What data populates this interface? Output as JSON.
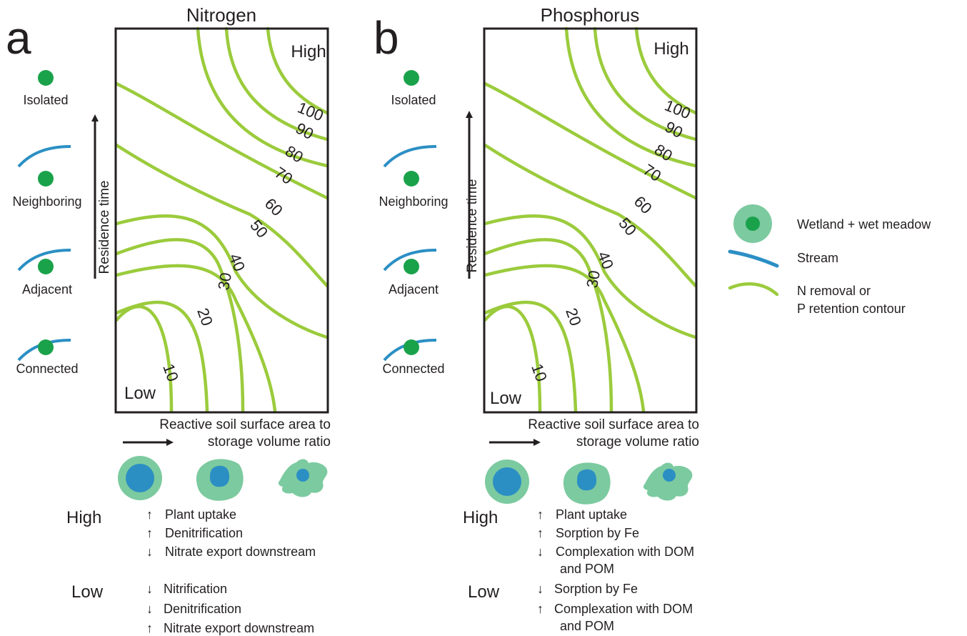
{
  "panels": [
    {
      "letter": "a",
      "title": "Nitrogen",
      "corner_high": "High",
      "corner_low": "Low",
      "contour_labels": [
        "100",
        "90",
        "80",
        "70",
        "60",
        "50",
        "40",
        "30",
        "20",
        "10"
      ],
      "y_axis_label": "Residence time",
      "x_axis_label_line1": "Reactive soil surface area to",
      "x_axis_label_line2": "storage volume ratio",
      "connectivity": [
        "Isolated",
        "Neighboring",
        "Adjacent",
        "Connected"
      ],
      "high_label": "High",
      "low_label": "Low",
      "high_processes": [
        {
          "dir": "up",
          "text": "Plant uptake"
        },
        {
          "dir": "up",
          "text": "Denitrification"
        },
        {
          "dir": "down",
          "text": "Nitrate export downstream"
        }
      ],
      "low_processes": [
        {
          "dir": "down",
          "text": "Nitrification"
        },
        {
          "dir": "down",
          "text": "Denitrification"
        },
        {
          "dir": "up",
          "text": "Nitrate export downstream"
        }
      ]
    },
    {
      "letter": "b",
      "title": "Phosphorus",
      "corner_high": "High",
      "corner_low": "Low",
      "contour_labels": [
        "100",
        "90",
        "80",
        "70",
        "60",
        "50",
        "40",
        "30",
        "20",
        "10"
      ],
      "y_axis_label": "Residence time",
      "x_axis_label_line1": "Reactive soil surface area to",
      "x_axis_label_line2": "storage volume ratio",
      "connectivity": [
        "Isolated",
        "Neighboring",
        "Adjacent",
        "Connected"
      ],
      "high_label": "High",
      "low_label": "Low",
      "high_processes": [
        {
          "dir": "up",
          "text": "Plant uptake"
        },
        {
          "dir": "up",
          "text": "Sorption by Fe"
        },
        {
          "dir": "down",
          "text": "Complexation with DOM",
          "cont": "and POM"
        }
      ],
      "low_processes": [
        {
          "dir": "down",
          "text": "Sorption by Fe"
        },
        {
          "dir": "up",
          "text": "Complexation with DOM",
          "cont": "and POM"
        }
      ]
    }
  ],
  "legend": {
    "wetland": "Wetland + wet meadow",
    "stream": "Stream",
    "contour_line1": "N removal or",
    "contour_line2": "P retention contour"
  },
  "colors": {
    "contour": "#9bcb3c",
    "stream": "#2b8fc4",
    "wetland_inner": "#1aa24b",
    "meadow": "#7ccaa0",
    "water": "#2b8fc4",
    "ink": "#231f20"
  },
  "arrow_symbols": {
    "up": "↑",
    "down": "↓"
  }
}
